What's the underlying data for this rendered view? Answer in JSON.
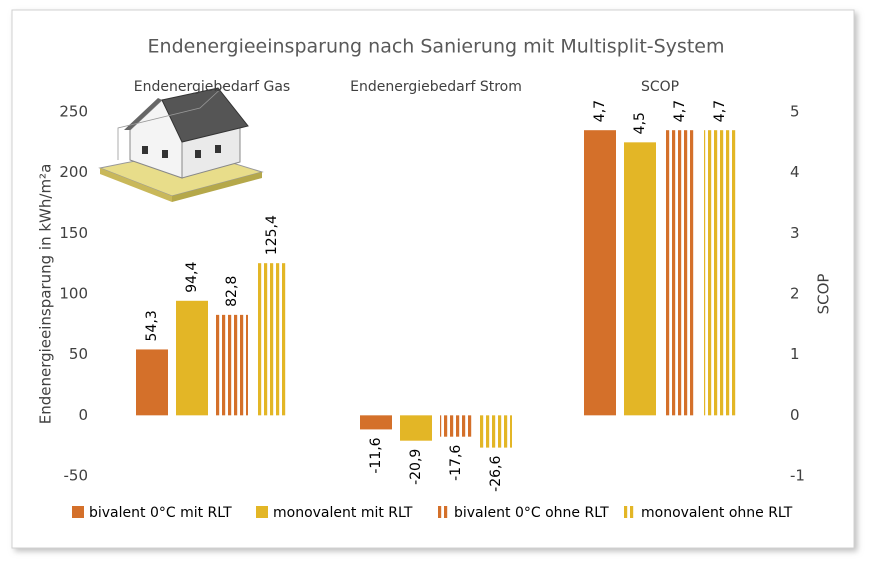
{
  "chart_data": {
    "type": "bar",
    "title": "Endenergieeinsparung nach Sanierung mit Multisplit-System",
    "y_label": "Endenergieeinsparung in kWh/m²a",
    "y2_label": "SCOP",
    "categories": [
      "Endenergiebedarf Gas",
      "Endenergiebedarf Strom",
      "SCOP"
    ],
    "category_axis": [
      "y",
      "y",
      "y2"
    ],
    "series": [
      {
        "name": "bivalent 0°C mit RLT",
        "color": "#d4702a",
        "pattern": "solid",
        "values": [
          54.3,
          -11.6,
          4.7
        ],
        "value_labels": [
          "54,3",
          "-11,6",
          "4,7"
        ]
      },
      {
        "name": "monovalent mit RLT",
        "color": "#e3b626",
        "pattern": "solid",
        "values": [
          94.4,
          -20.9,
          4.5
        ],
        "value_labels": [
          "94,4",
          "-20,9",
          "4,5"
        ]
      },
      {
        "name": "bivalent 0°C ohne RLT",
        "color": "#d4702a",
        "pattern": "stripes",
        "values": [
          82.8,
          -17.6,
          4.7
        ],
        "value_labels": [
          "82,8",
          "-17,6",
          "4,7"
        ]
      },
      {
        "name": "monovalent ohne RLT",
        "color": "#e3b626",
        "pattern": "stripes",
        "values": [
          125.4,
          -26.6,
          4.7
        ],
        "value_labels": [
          "125,4",
          "-26,6",
          "4,7"
        ]
      }
    ],
    "ylim": [
      -50,
      250
    ],
    "yticks": [
      -50,
      0,
      50,
      100,
      150,
      200,
      250
    ],
    "y2lim": [
      -1,
      5
    ],
    "y2ticks": [
      -1,
      0,
      1,
      2,
      3,
      4,
      5
    ],
    "grid": false,
    "legend": "bottom"
  }
}
